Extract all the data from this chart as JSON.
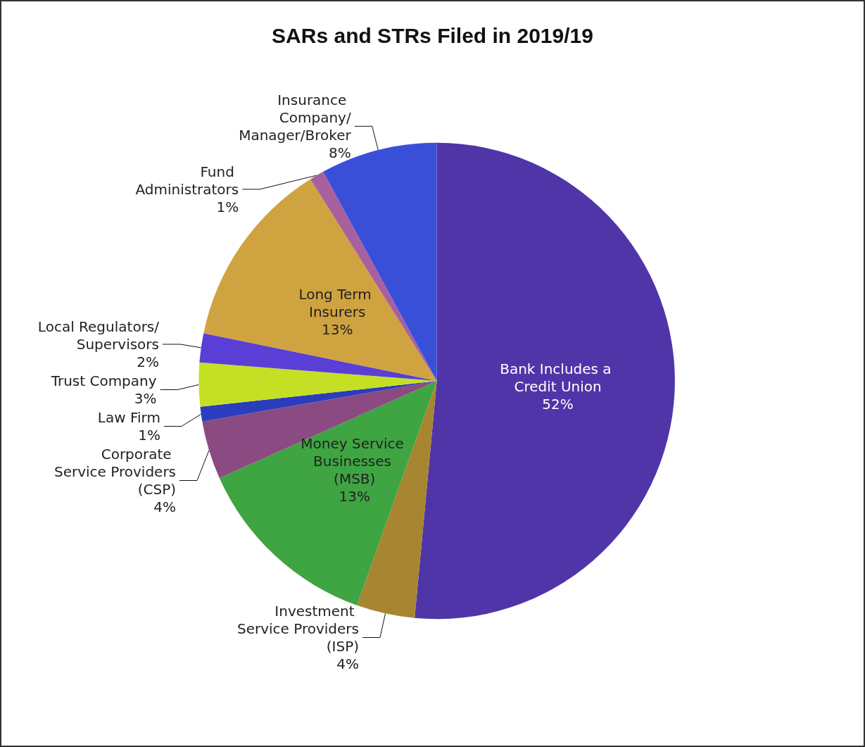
{
  "chart_data": {
    "type": "pie",
    "title": "SARs and STRs Filed in 2019/19",
    "categories": [
      "Bank Includes a Credit Union",
      "Investment Service Providers (ISP)",
      "Money Service Businesses (MSB)",
      "Corporate Service Providers (CSP)",
      "Law Firm",
      "Trust Company",
      "Local Regulators/ Supervisors",
      "Long Term Insurers",
      "Fund Administrators",
      "Insurance Company/Manager/Broker"
    ],
    "values": [
      52,
      4,
      13,
      4,
      1,
      3,
      2,
      13,
      1,
      8
    ],
    "value_labels": [
      "52%",
      "4%",
      "13%",
      "4%",
      "1%",
      "3%",
      "2%",
      "13%",
      "1%",
      "8%"
    ],
    "colors": [
      "#5035a8",
      "#a88530",
      "#3fa442",
      "#8b4a82",
      "#2b3dbd",
      "#c5e024",
      "#5a3fd6",
      "#cfa33f",
      "#a8609e",
      "#3a4fd8"
    ],
    "legend": false
  }
}
